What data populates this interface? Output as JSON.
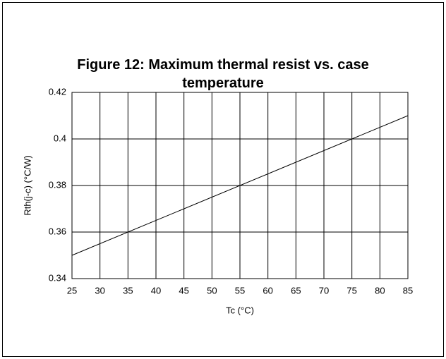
{
  "chart_data": {
    "type": "line",
    "title": "Figure 12: Maximum thermal resist vs. case temperature",
    "xlabel": "Tc (°C)",
    "ylabel": "Rth(j-c) (°C/W)",
    "x": [
      25,
      85
    ],
    "series": [
      {
        "color": "#000000",
        "values": [
          0.35,
          0.41
        ]
      }
    ],
    "xlim": [
      25,
      85
    ],
    "xticks": [
      25,
      30,
      35,
      40,
      45,
      50,
      55,
      60,
      65,
      70,
      75,
      80,
      85
    ],
    "ylim": [
      0.34,
      0.42
    ],
    "yticks": [
      0.34,
      0.36,
      0.38,
      0.4,
      0.42
    ],
    "grid": true
  }
}
